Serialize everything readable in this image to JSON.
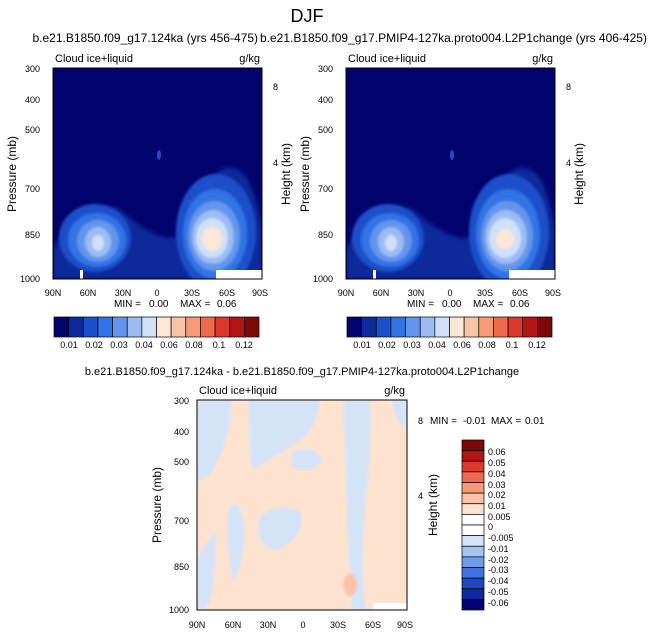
{
  "figure_title": "DJF",
  "chart_data": [
    {
      "type": "heatmap",
      "title": "b.e21.B1850.f09_g17.124ka (yrs 456-475)",
      "left_label": "Cloud ice+liquid",
      "right_label": "g/kg",
      "xlabel": "",
      "ylabel": "Pressure (mb)",
      "ylabel_right": "Height (km)",
      "x_ticks": [
        "90N",
        "60N",
        "30N",
        "0",
        "30S",
        "60S",
        "90S"
      ],
      "y_ticks": [
        "300",
        "400",
        "500",
        "700",
        "850",
        "1000"
      ],
      "height_ticks": [
        "8",
        "4"
      ],
      "stats": {
        "min_label": "MIN =",
        "min": "0.00",
        "max_label": "MAX =",
        "max": "0.06"
      },
      "features": [
        {
          "lat": -49,
          "p": 850,
          "peak": 0.065
        },
        {
          "lat": 72,
          "p": 862,
          "peak": 0.036
        }
      ]
    },
    {
      "type": "heatmap",
      "title": "b.e21.B1850.f09_g17.PMIP4-127ka.proto004.L2P1change (yrs 406-425)",
      "left_label": "Cloud ice+liquid",
      "right_label": "g/kg",
      "xlabel": "",
      "ylabel": "Pressure (mb)",
      "ylabel_right": "Height (km)",
      "x_ticks": [
        "90N",
        "60N",
        "30N",
        "0",
        "30S",
        "60S",
        "90S"
      ],
      "y_ticks": [
        "300",
        "400",
        "500",
        "700",
        "850",
        "1000"
      ],
      "height_ticks": [
        "8",
        "4"
      ],
      "stats": {
        "min_label": "MIN =",
        "min": "0.00",
        "max_label": "MAX =",
        "max": "0.06"
      },
      "features": [
        {
          "lat": -49,
          "p": 850,
          "peak": 0.062
        },
        {
          "lat": 72,
          "p": 862,
          "peak": 0.036
        }
      ]
    },
    {
      "type": "heatmap",
      "title": "b.e21.B1850.f09_g17.124ka - b.e21.B1850.f09_g17.PMIP4-127ka.proto004.L2P1change",
      "left_label": "Cloud ice+liquid",
      "right_label": "g/kg",
      "xlabel": "",
      "ylabel": "Pressure (mb)",
      "ylabel_right": "Height (km)",
      "x_ticks": [
        "90N",
        "60N",
        "30N",
        "0",
        "30S",
        "60S",
        "90S"
      ],
      "y_ticks": [
        "300",
        "400",
        "500",
        "700",
        "850",
        "1000"
      ],
      "height_ticks": [
        "8",
        "4"
      ],
      "stats": {
        "min_label": "MIN =",
        "min": "-0.01",
        "max_label": "MAX =",
        "max": "0.01"
      }
    }
  ],
  "colorbar_shared": {
    "labels": [
      "0.01",
      "0.02",
      "0.03",
      "0.04",
      "0.06",
      "0.08",
      "0.1",
      "0.12"
    ],
    "colors": [
      "#03036e",
      "#0c2a9b",
      "#1c50c9",
      "#3373e6",
      "#6495ed",
      "#9bbcf2",
      "#cfe0f8",
      "#fce6d7",
      "#fbc3a6",
      "#f79b77",
      "#ee6a4f",
      "#d93a2b",
      "#b31414",
      "#7d0909"
    ]
  },
  "colorbar_diff": {
    "labels": [
      "0.06",
      "0.05",
      "0.04",
      "0.03",
      "0.02",
      "0.01",
      "0.005",
      "0",
      "-0.005",
      "-0.01",
      "-0.02",
      "-0.03",
      "-0.04",
      "-0.05",
      "-0.06"
    ],
    "colors": [
      "#7d0909",
      "#b31414",
      "#d93a2b",
      "#ee6a4f",
      "#f79b77",
      "#fbc3a6",
      "#fde3cf",
      "#ffffff",
      "#ffffff",
      "#d4e3f8",
      "#a5c3f2",
      "#6f9ced",
      "#3f73e0",
      "#1c46c2",
      "#0c2a9b",
      "#03036e"
    ]
  }
}
